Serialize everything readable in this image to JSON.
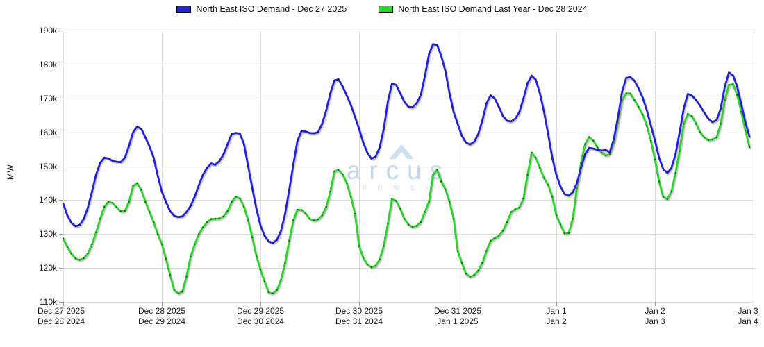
{
  "legend": [
    {
      "label": "North East ISO Demand - Dec 27 2025",
      "color": "#2222dd"
    },
    {
      "label": "North East ISO Demand Last Year - Dec 28 2024",
      "color": "#2bd42b"
    }
  ],
  "y_axis": {
    "title": "MW",
    "tick_labels": [
      "190k",
      "180k",
      "170k",
      "160k",
      "150k",
      "140k",
      "130k",
      "120k",
      "110k"
    ],
    "min": 110,
    "max": 190
  },
  "x_axis": {
    "ticks": [
      {
        "line1": "Dec 27 2025",
        "line2": "Dec 28 2024"
      },
      {
        "line1": "Dec 28 2025",
        "line2": "Dec 29 2024"
      },
      {
        "line1": "Dec 29 2025",
        "line2": "Dec 30 2024"
      },
      {
        "line1": "Dec 30 2025",
        "line2": "Dec 31 2024"
      },
      {
        "line1": "Dec 31 2025",
        "line2": "Jan 1 2025"
      },
      {
        "line1": "Jan 1",
        "line2": "Jan 2"
      },
      {
        "line1": "Jan 2",
        "line2": "Jan 3"
      },
      {
        "line1": "Jan 3",
        "line2": "Jan 4"
      }
    ]
  },
  "watermark": {
    "name": "arcus",
    "sub": "P O W E R",
    "text_color": "#b9d0e4",
    "sub_color": "#canotused",
    "triangle_color": "#cde0ef"
  },
  "colors": {
    "grid": "#dadada",
    "tick": "#9a9a9a",
    "shadow": "#999999",
    "marker": "#1c1c1c"
  },
  "chart_data": {
    "type": "line",
    "title": "",
    "ylabel": "MW",
    "ylim": [
      110000,
      190000
    ],
    "y_unit": "MW (values in thousands, i.e. 139 = 139k MW)",
    "x_unit": "hourly points, 24 per day, spanning 7 days (Dec 27 2025 - Jan 3 2026 vs Dec 28 2024 - Jan 4 2025)",
    "grid": true,
    "legend_position": "top-center",
    "series": [
      {
        "name": "North East ISO Demand - Dec 27 2025",
        "color": "#2222dd",
        "values": [
          139.0,
          135.5,
          133.3,
          132.3,
          132.7,
          134.5,
          137.8,
          142.5,
          147.5,
          151.0,
          152.5,
          152.3,
          151.6,
          151.3,
          151.2,
          152.5,
          156.0,
          160.0,
          161.7,
          161.0,
          158.5,
          155.8,
          152.5,
          147.2,
          142.5,
          139.5,
          136.8,
          135.4,
          135.0,
          135.2,
          136.5,
          138.3,
          141.0,
          144.4,
          147.5,
          149.5,
          150.8,
          150.4,
          151.5,
          153.5,
          156.5,
          159.5,
          159.8,
          159.6,
          156.5,
          150.0,
          143.5,
          137.5,
          132.5,
          129.5,
          127.8,
          127.4,
          128.3,
          131.0,
          136.0,
          143.0,
          150.5,
          157.5,
          160.4,
          160.2,
          159.8,
          159.7,
          160.0,
          162.5,
          166.5,
          171.5,
          175.3,
          175.6,
          173.5,
          170.8,
          168.0,
          164.5,
          161.0,
          157.0,
          154.0,
          152.2,
          152.8,
          155.5,
          161.0,
          169.0,
          174.3,
          174.0,
          171.5,
          169.0,
          167.5,
          167.4,
          168.5,
          171.0,
          176.5,
          183.0,
          186.0,
          185.7,
          182.5,
          178.0,
          171.5,
          166.0,
          162.5,
          159.0,
          157.0,
          156.4,
          157.2,
          159.5,
          163.5,
          168.5,
          170.9,
          170.0,
          167.5,
          164.8,
          163.4,
          163.2,
          164.0,
          166.0,
          170.0,
          174.5,
          176.7,
          175.5,
          171.5,
          166.0,
          159.5,
          152.5,
          147.5,
          144.0,
          141.8,
          141.3,
          142.3,
          145.0,
          149.5,
          153.5,
          155.4,
          155.2,
          154.8,
          154.6,
          154.8,
          154.2,
          158.0,
          164.5,
          172.0,
          176.0,
          176.3,
          175.2,
          173.0,
          170.2,
          166.5,
          162.0,
          157.5,
          152.5,
          149.2,
          148.0,
          149.5,
          153.5,
          160.0,
          167.0,
          171.3,
          170.8,
          169.5,
          167.8,
          165.8,
          164.0,
          163.0,
          163.6,
          167.0,
          173.5,
          177.6,
          176.8,
          173.5,
          168.3,
          163.0,
          158.7
        ]
      },
      {
        "name": "North East ISO Demand Last Year - Dec 28 2024",
        "color": "#2bd42b",
        "values": [
          128.7,
          126.2,
          124.2,
          122.8,
          122.4,
          122.9,
          124.3,
          127.0,
          130.5,
          134.5,
          138.0,
          139.5,
          139.2,
          137.9,
          136.7,
          136.8,
          139.5,
          144.2,
          145.0,
          143.0,
          139.5,
          136.5,
          133.5,
          130.0,
          127.0,
          122.7,
          118.0,
          113.5,
          112.5,
          113.0,
          117.5,
          123.3,
          127.0,
          130.0,
          132.0,
          133.5,
          134.4,
          134.5,
          134.6,
          135.2,
          136.8,
          139.5,
          141.0,
          140.5,
          138.0,
          134.0,
          129.0,
          123.5,
          119.5,
          116.0,
          112.8,
          112.5,
          113.5,
          116.5,
          121.5,
          128.0,
          134.0,
          137.2,
          137.1,
          136.0,
          134.5,
          134.0,
          134.3,
          135.5,
          138.0,
          142.5,
          148.5,
          148.9,
          147.6,
          145.0,
          141.0,
          136.0,
          126.5,
          123.0,
          121.0,
          120.2,
          120.6,
          122.5,
          126.5,
          133.0,
          140.3,
          139.8,
          137.5,
          134.5,
          132.8,
          132.1,
          132.4,
          133.5,
          136.5,
          139.5,
          147.5,
          149.0,
          145.5,
          143.2,
          139.5,
          134.5,
          125.0,
          121.5,
          118.3,
          117.4,
          117.9,
          119.2,
          121.5,
          125.0,
          128.0,
          128.8,
          129.5,
          131.0,
          133.5,
          136.5,
          137.3,
          137.8,
          140.5,
          147.5,
          154.0,
          152.5,
          149.5,
          146.5,
          144.5,
          141.0,
          135.5,
          132.8,
          130.2,
          130.3,
          134.5,
          143.5,
          151.0,
          156.5,
          158.6,
          157.5,
          155.5,
          154.0,
          153.2,
          153.6,
          157.0,
          163.0,
          169.5,
          171.5,
          171.4,
          169.5,
          167.5,
          165.2,
          162.0,
          157.5,
          152.0,
          145.5,
          141.0,
          140.3,
          142.5,
          148.0,
          154.5,
          162.5,
          165.4,
          164.8,
          162.5,
          160.0,
          158.5,
          157.7,
          157.9,
          158.5,
          162.5,
          169.5,
          174.0,
          174.2,
          171.0,
          166.0,
          160.5,
          155.6
        ]
      }
    ]
  }
}
